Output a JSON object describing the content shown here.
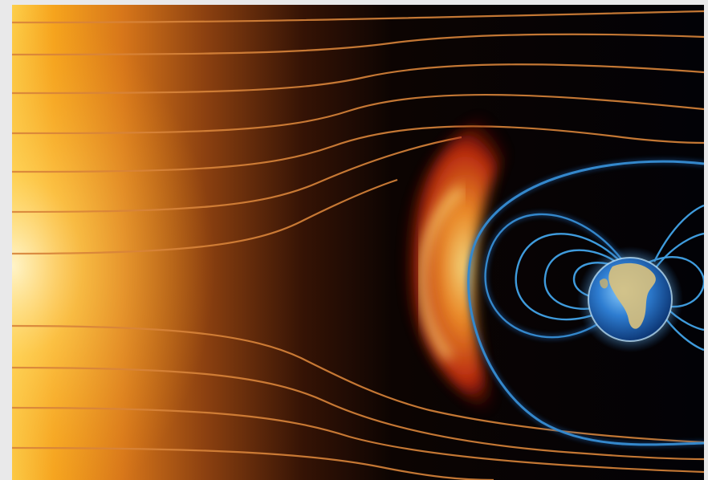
{
  "image": {
    "subject": "sun-solar-wind-earth-magnetosphere",
    "colors": {
      "sun_core": "#fff4c2",
      "sun_mid": "#f7a21a",
      "sun_edge": "#c2560e",
      "wind_line": "#d8843a",
      "bow_shock": "#f0561c",
      "field_line": "#3f9bdc",
      "field_glow": "#1a5fa8",
      "earth_ocean": "#2e7dd1",
      "earth_land": "#d9c17d",
      "frame_background": "#e9e9ea"
    }
  }
}
